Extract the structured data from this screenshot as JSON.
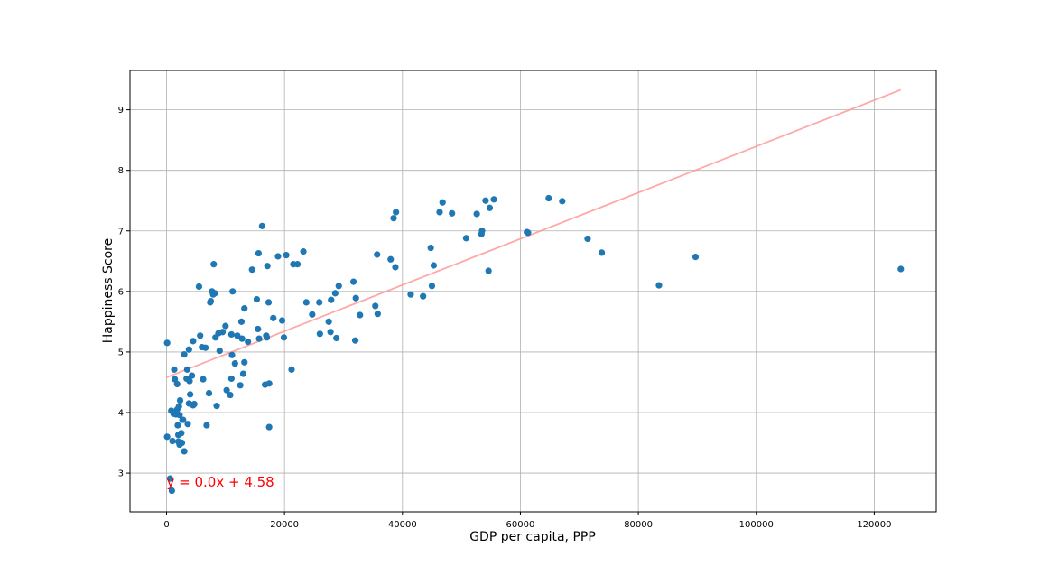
{
  "chart_data": {
    "type": "scatter",
    "title": "",
    "xlabel": "GDP per capita, PPP",
    "ylabel": "Happiness Score",
    "xlim": [
      -6200,
      130500
    ],
    "ylim": [
      2.36,
      9.65
    ],
    "xticks": [
      0,
      20000,
      40000,
      60000,
      80000,
      100000,
      120000
    ],
    "yticks": [
      3,
      4,
      5,
      6,
      7,
      8,
      9
    ],
    "grid": true,
    "colors": {
      "points": "#1f77b4",
      "trendline": "#ff9999",
      "annotation": "#ff0000"
    },
    "annotation": {
      "text": "y = 0.0x + 4.58",
      "x": 0,
      "y": 2.72
    },
    "trendline": {
      "x": [
        0,
        124500
      ],
      "y": [
        4.58,
        9.33
      ]
    },
    "points": [
      [
        100,
        5.15
      ],
      [
        100,
        3.6
      ],
      [
        600,
        2.91
      ],
      [
        900,
        2.71
      ],
      [
        800,
        4.03
      ],
      [
        1000,
        3.53
      ],
      [
        1200,
        3.98
      ],
      [
        1300,
        4.71
      ],
      [
        1400,
        4.55
      ],
      [
        1600,
        3.97
      ],
      [
        1800,
        4.47
      ],
      [
        1800,
        4.05
      ],
      [
        1900,
        3.79
      ],
      [
        2000,
        3.63
      ],
      [
        2000,
        3.52
      ],
      [
        2100,
        4.1
      ],
      [
        2200,
        3.96
      ],
      [
        2200,
        3.47
      ],
      [
        2300,
        4.2
      ],
      [
        2500,
        3.66
      ],
      [
        2600,
        3.5
      ],
      [
        2700,
        3.88
      ],
      [
        2800,
        3.88
      ],
      [
        3000,
        4.96
      ],
      [
        3000,
        3.36
      ],
      [
        3400,
        4.56
      ],
      [
        3500,
        4.71
      ],
      [
        3600,
        3.81
      ],
      [
        3800,
        5.04
      ],
      [
        3800,
        4.15
      ],
      [
        3900,
        4.52
      ],
      [
        4000,
        4.3
      ],
      [
        4300,
        4.61
      ],
      [
        4500,
        5.18
      ],
      [
        4500,
        4.12
      ],
      [
        4700,
        4.14
      ],
      [
        5500,
        6.08
      ],
      [
        5700,
        5.27
      ],
      [
        6000,
        5.08
      ],
      [
        6200,
        4.55
      ],
      [
        6600,
        5.07
      ],
      [
        6800,
        3.79
      ],
      [
        7200,
        4.32
      ],
      [
        7400,
        5.82
      ],
      [
        7500,
        5.84
      ],
      [
        7700,
        6.0
      ],
      [
        7900,
        5.95
      ],
      [
        8000,
        6.45
      ],
      [
        8200,
        5.97
      ],
      [
        8300,
        5.24
      ],
      [
        8500,
        4.11
      ],
      [
        8800,
        5.31
      ],
      [
        9000,
        5.02
      ],
      [
        9500,
        5.33
      ],
      [
        10000,
        5.43
      ],
      [
        10200,
        4.37
      ],
      [
        10800,
        4.29
      ],
      [
        11000,
        5.29
      ],
      [
        11000,
        4.56
      ],
      [
        11100,
        4.95
      ],
      [
        11200,
        6.0
      ],
      [
        11600,
        4.81
      ],
      [
        12000,
        5.27
      ],
      [
        12500,
        4.45
      ],
      [
        12700,
        5.5
      ],
      [
        12800,
        5.22
      ],
      [
        13000,
        4.64
      ],
      [
        13200,
        5.72
      ],
      [
        13200,
        4.83
      ],
      [
        13800,
        5.17
      ],
      [
        14500,
        6.36
      ],
      [
        15300,
        5.87
      ],
      [
        15500,
        5.38
      ],
      [
        15600,
        6.63
      ],
      [
        15700,
        5.22
      ],
      [
        16200,
        7.08
      ],
      [
        16700,
        4.46
      ],
      [
        16900,
        5.27
      ],
      [
        17000,
        5.24
      ],
      [
        17100,
        6.42
      ],
      [
        17300,
        5.82
      ],
      [
        17400,
        3.76
      ],
      [
        17400,
        4.48
      ],
      [
        18100,
        5.56
      ],
      [
        18900,
        6.58
      ],
      [
        19600,
        5.52
      ],
      [
        19900,
        5.24
      ],
      [
        20300,
        6.6
      ],
      [
        21200,
        4.71
      ],
      [
        21500,
        6.45
      ],
      [
        22200,
        6.45
      ],
      [
        23200,
        6.66
      ],
      [
        23700,
        5.82
      ],
      [
        24700,
        5.62
      ],
      [
        25900,
        5.82
      ],
      [
        26000,
        5.3
      ],
      [
        27500,
        5.5
      ],
      [
        27800,
        5.33
      ],
      [
        27900,
        5.86
      ],
      [
        28600,
        5.97
      ],
      [
        28800,
        5.23
      ],
      [
        29200,
        6.09
      ],
      [
        31700,
        6.16
      ],
      [
        32000,
        5.19
      ],
      [
        32100,
        5.89
      ],
      [
        32800,
        5.61
      ],
      [
        35400,
        5.76
      ],
      [
        35700,
        6.61
      ],
      [
        35800,
        5.63
      ],
      [
        38000,
        6.53
      ],
      [
        38500,
        7.21
      ],
      [
        38800,
        6.4
      ],
      [
        38900,
        7.31
      ],
      [
        41400,
        5.95
      ],
      [
        43500,
        5.92
      ],
      [
        44800,
        6.72
      ],
      [
        45000,
        6.09
      ],
      [
        45300,
        6.43
      ],
      [
        46300,
        7.31
      ],
      [
        46800,
        7.47
      ],
      [
        48400,
        7.29
      ],
      [
        50800,
        6.88
      ],
      [
        52600,
        7.28
      ],
      [
        53400,
        6.95
      ],
      [
        53500,
        7.0
      ],
      [
        54100,
        7.5
      ],
      [
        54600,
        6.34
      ],
      [
        54800,
        7.38
      ],
      [
        55500,
        7.52
      ],
      [
        61100,
        6.98
      ],
      [
        61300,
        6.97
      ],
      [
        64800,
        7.54
      ],
      [
        67100,
        7.49
      ],
      [
        71400,
        6.87
      ],
      [
        73800,
        6.64
      ],
      [
        83500,
        6.1
      ],
      [
        89700,
        6.57
      ],
      [
        124500,
        6.37
      ]
    ]
  }
}
